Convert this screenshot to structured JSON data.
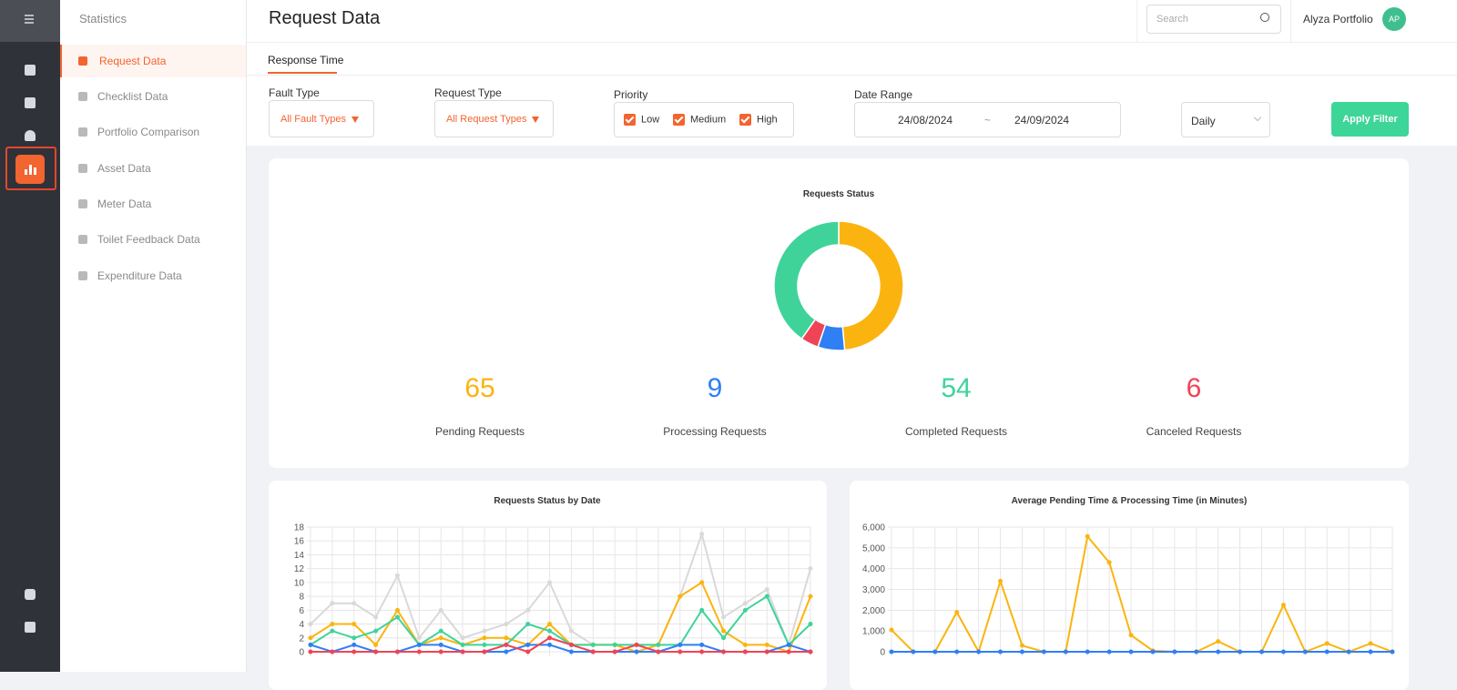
{
  "nav": {
    "title": "Statistics",
    "items": [
      "Request Data",
      "Checklist Data",
      "Portfolio Comparison",
      "Asset Data",
      "Meter Data",
      "Toilet Feedback Data",
      "Expenditure Data"
    ]
  },
  "header": {
    "title": "Request Data",
    "search": "Search",
    "user": "Alyza Portfolio",
    "avatar": "AP"
  },
  "tabs": [
    "Response Time"
  ],
  "filters": {
    "fault_type": {
      "label": "Fault Type",
      "value": "All Fault Types"
    },
    "request_type": {
      "label": "Request Type",
      "value": "All Request Types"
    },
    "priority": {
      "label": "Priority",
      "options": [
        "Low",
        "Medium",
        "High"
      ]
    },
    "date_range": {
      "label": "Date Range",
      "start": "24/08/2024",
      "separator": "~",
      "end": "24/09/2024"
    },
    "interval": "Daily",
    "apply": "Apply Filter"
  },
  "chart_data": [
    {
      "type": "pie",
      "donut": true,
      "title": "Requests Status",
      "categories": [
        "Pending Requests",
        "Processing Requests",
        "Canceled Requests",
        "Completed Requests"
      ],
      "values": [
        65,
        9,
        6,
        54
      ],
      "colors": [
        "#fbb40f",
        "#2f7ff5",
        "#ef4456",
        "#3fd39a"
      ]
    },
    {
      "type": "line",
      "title": "Requests Status by Date",
      "grid": true,
      "categories": [
        null,
        null,
        null,
        null,
        null,
        null,
        null,
        null,
        null,
        null,
        null,
        null,
        null,
        null,
        null,
        null,
        null,
        null,
        null,
        null,
        null,
        null,
        null,
        null
      ],
      "ylim": [
        0,
        18
      ],
      "yticks": [
        0,
        2,
        4,
        6,
        8,
        10,
        12,
        14,
        16,
        18
      ],
      "series": [
        {
          "color": "#d9d9d9",
          "values": [
            4,
            7,
            7,
            5,
            11,
            2,
            6,
            2,
            3,
            4,
            6,
            10,
            3,
            1,
            1,
            1,
            1,
            8,
            17,
            5,
            7,
            9,
            1,
            12
          ]
        },
        {
          "color": "#fbb40f",
          "values": [
            2,
            4,
            4,
            1,
            6,
            1,
            2,
            1,
            2,
            2,
            1,
            4,
            1,
            1,
            1,
            0,
            1,
            8,
            10,
            3,
            1,
            1,
            0,
            8
          ]
        },
        {
          "color": "#3fd39a",
          "values": [
            1,
            3,
            2,
            3,
            5,
            1,
            3,
            1,
            1,
            1,
            4,
            3,
            1,
            1,
            1,
            1,
            1,
            1,
            6,
            2,
            6,
            8,
            1,
            4
          ]
        },
        {
          "color": "#2f7ff5",
          "values": [
            1,
            0,
            1,
            0,
            0,
            1,
            1,
            0,
            0,
            0,
            1,
            1,
            0,
            0,
            0,
            0,
            0,
            1,
            1,
            0,
            0,
            0,
            1,
            0
          ]
        },
        {
          "color": "#ef4456",
          "values": [
            0,
            0,
            0,
            0,
            0,
            0,
            0,
            0,
            0,
            1,
            0,
            2,
            1,
            0,
            0,
            1,
            0,
            0,
            0,
            0,
            0,
            0,
            0,
            0
          ]
        }
      ]
    },
    {
      "type": "line",
      "title": "Average Pending Time & Processing Time (in Minutes)",
      "grid": true,
      "categories": [
        null,
        null,
        null,
        null,
        null,
        null,
        null,
        null,
        null,
        null,
        null,
        null,
        null,
        null,
        null,
        null,
        null,
        null,
        null,
        null,
        null,
        null,
        null,
        null
      ],
      "ylim": [
        0,
        6000
      ],
      "yticks": [
        0,
        {
          "value": 1000,
          "label": "1,000"
        },
        {
          "value": 2000,
          "label": "2,000"
        },
        {
          "value": 3000,
          "label": "3,000"
        },
        {
          "value": 4000,
          "label": "4,000"
        },
        {
          "value": 5000,
          "label": "5,000"
        },
        {
          "value": 6000,
          "label": "6,000"
        }
      ],
      "series": [
        {
          "color": "#fbb40f",
          "values": [
            1050,
            0,
            0,
            1900,
            0,
            3400,
            300,
            0,
            0,
            5550,
            4300,
            800,
            50,
            0,
            0,
            500,
            0,
            0,
            2250,
            0,
            400,
            0,
            400,
            0
          ]
        },
        {
          "color": "#2f7ff5",
          "values": [
            0,
            0,
            0,
            0,
            0,
            0,
            0,
            0,
            0,
            0,
            0,
            0,
            0,
            0,
            0,
            0,
            0,
            0,
            0,
            0,
            0,
            0,
            0,
            0
          ]
        }
      ]
    }
  ]
}
